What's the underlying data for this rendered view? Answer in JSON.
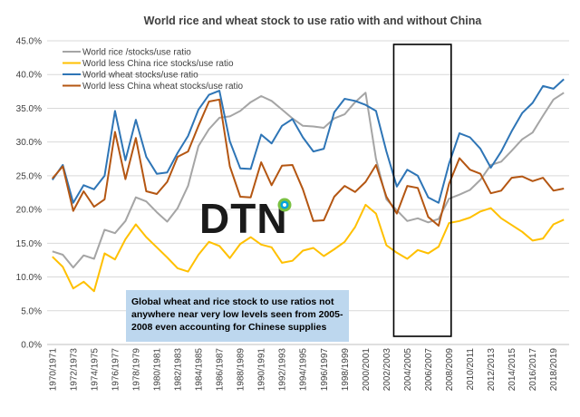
{
  "chart_data": {
    "type": "line",
    "title": "World rice and wheat stock to use ratio with and without China",
    "xlabel": "",
    "ylabel": "",
    "ylim": [
      0,
      45
    ],
    "y_ticks": [
      "0.0%",
      "5.0%",
      "10.0%",
      "15.0%",
      "20.0%",
      "25.0%",
      "30.0%",
      "35.0%",
      "40.0%",
      "45.0%"
    ],
    "x": [
      "1970/1971",
      "1971/1972",
      "1972/1973",
      "1973/1974",
      "1974/1975",
      "1975/1976",
      "1976/1977",
      "1977/1978",
      "1978/1979",
      "1979/1980",
      "1980/1981",
      "1981/1982",
      "1982/1983",
      "1983/1984",
      "1984/1985",
      "1985/1986",
      "1986/1987",
      "1987/1988",
      "1988/1989",
      "1989/1990",
      "1990/1991",
      "1991/1992",
      "1992/1993",
      "1993/1994",
      "1994/1995",
      "1995/1996",
      "1996/1997",
      "1997/1998",
      "1998/1999",
      "1999/2000",
      "2000/2001",
      "2001/2002",
      "2002/2003",
      "2003/2004",
      "2004/2005",
      "2005/2006",
      "2006/2007",
      "2007/2008",
      "2008/2009",
      "2009/2010",
      "2010/2011",
      "2011/2012",
      "2012/2013",
      "2013/2014",
      "2014/2015",
      "2015/2016",
      "2016/2017",
      "2017/2018",
      "2018/2019",
      "2019/2020"
    ],
    "x_tick_labels": [
      "1970/1971",
      "1972/1973",
      "1974/1975",
      "1976/1977",
      "1978/1979",
      "1980/1981",
      "1982/1983",
      "1984/1985",
      "1986/1987",
      "1988/1989",
      "1990/1991",
      "1992/1993",
      "1994/1995",
      "1996/1997",
      "1998/1999",
      "2000/2001",
      "2002/2003",
      "2004/2005",
      "2006/2007",
      "2008/2009",
      "2010/2011",
      "2012/2013",
      "2014/2015",
      "2016/2017",
      "2018/2019"
    ],
    "legend_position": "top-left",
    "grid": true,
    "series": [
      {
        "name": "World rice /stocks/use ratio",
        "color": "#a5a5a5",
        "values": [
          13.8,
          13.3,
          11.4,
          13.2,
          12.7,
          17.0,
          16.5,
          18.3,
          21.8,
          21.2,
          19.6,
          18.2,
          20.2,
          23.5,
          29.4,
          31.9,
          33.6,
          33.8,
          34.6,
          35.9,
          36.8,
          36.1,
          34.8,
          33.5,
          32.4,
          32.3,
          32.1,
          33.5,
          34.1,
          35.9,
          37.3,
          27.5,
          21.5,
          19.9,
          18.3,
          18.7,
          18.1,
          18.6,
          21.6,
          22.2,
          22.9,
          24.4,
          26.6,
          27.1,
          28.7,
          30.4,
          31.4,
          33.9,
          36.3,
          37.3
        ]
      },
      {
        "name": "World less China rice stocks/use ratio",
        "color": "#ffc000",
        "values": [
          13.0,
          11.5,
          8.3,
          9.3,
          7.9,
          13.5,
          12.6,
          15.6,
          17.8,
          15.9,
          14.4,
          12.9,
          11.3,
          10.8,
          13.3,
          15.2,
          14.6,
          12.8,
          14.9,
          15.9,
          14.8,
          14.4,
          12.1,
          12.4,
          13.9,
          14.3,
          13.1,
          14.1,
          15.2,
          17.4,
          20.7,
          19.4,
          14.7,
          13.6,
          12.7,
          14.0,
          13.5,
          14.5,
          18.0,
          18.3,
          18.8,
          19.7,
          20.2,
          18.7,
          17.7,
          16.7,
          15.4,
          15.7,
          17.8,
          18.5
        ]
      },
      {
        "name": "World wheat stocks/use ratio",
        "color": "#2e75b6",
        "values": [
          24.4,
          26.6,
          21.0,
          23.6,
          23.0,
          25.0,
          34.6,
          27.3,
          33.3,
          27.8,
          25.3,
          25.5,
          28.4,
          30.9,
          34.8,
          37.0,
          37.6,
          30.1,
          26.1,
          26.0,
          31.1,
          29.8,
          32.4,
          33.4,
          30.7,
          28.6,
          29.0,
          34.4,
          36.4,
          36.1,
          35.5,
          34.6,
          28.6,
          23.4,
          25.9,
          25.0,
          21.8,
          21.0,
          26.8,
          31.3,
          30.7,
          29.0,
          26.2,
          28.6,
          31.6,
          34.3,
          35.8,
          38.3,
          37.9,
          39.3
        ]
      },
      {
        "name": "World less China wheat stocks/use ratio",
        "color": "#b45612",
        "values": [
          24.6,
          26.4,
          19.8,
          22.7,
          20.4,
          21.5,
          31.5,
          24.5,
          30.6,
          22.7,
          22.3,
          24.1,
          27.8,
          28.6,
          32.4,
          36.0,
          36.3,
          26.4,
          21.9,
          21.8,
          27.0,
          23.6,
          26.5,
          26.6,
          23.0,
          18.3,
          18.4,
          21.9,
          23.5,
          22.6,
          24.1,
          26.6,
          21.9,
          19.4,
          23.5,
          23.2,
          18.9,
          17.6,
          23.8,
          27.6,
          25.9,
          25.3,
          22.4,
          22.8,
          24.7,
          24.9,
          24.2,
          24.7,
          22.8,
          23.1
        ]
      }
    ],
    "highlight_box": {
      "from": "2003/2004",
      "to": "2008/2009"
    },
    "annotation": "Global wheat and rice stock to use ratios not anywhere near very low levels seen from 2005-2008  even accounting for Chinese supplies",
    "annotation_lines": [
      "Global wheat and rice stock to use ratios not",
      "anywhere near very low levels seen from 2005-",
      "2008  even accounting for Chinese supplies"
    ],
    "logo_text": "DTN"
  }
}
